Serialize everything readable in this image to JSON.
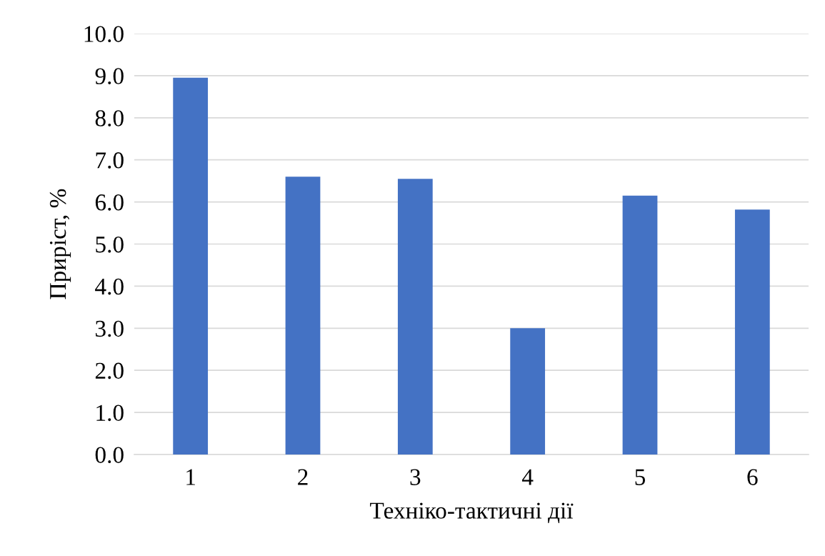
{
  "chart_data": {
    "type": "bar",
    "xlabel": "Техніко-тактичні дії",
    "ylabel": "Приріст, %",
    "categories": [
      "1",
      "2",
      "3",
      "4",
      "5",
      "6"
    ],
    "values": [
      8.95,
      6.6,
      6.55,
      3.0,
      6.15,
      5.82
    ],
    "color": "#4472c4",
    "ylim": [
      0,
      10
    ],
    "yticks": [
      {
        "value": 0,
        "label": "0.0"
      },
      {
        "value": 1,
        "label": "1.0"
      },
      {
        "value": 2,
        "label": "2.0"
      },
      {
        "value": 3,
        "label": "3.0"
      },
      {
        "value": 4,
        "label": "4.0"
      },
      {
        "value": 5,
        "label": "5.0"
      },
      {
        "value": 6,
        "label": "6.0"
      },
      {
        "value": 7,
        "label": "7.0"
      },
      {
        "value": 8,
        "label": "8.0"
      },
      {
        "value": 9,
        "label": "9.0"
      },
      {
        "value": 10,
        "label": "10.0"
      }
    ],
    "grid": "y",
    "legend": false
  }
}
